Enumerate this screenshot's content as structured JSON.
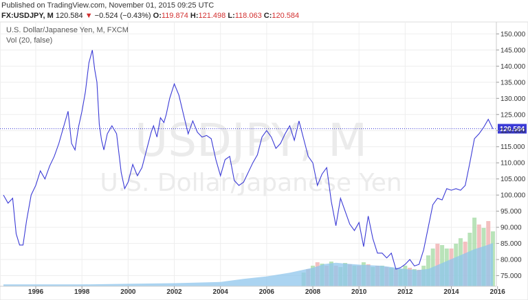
{
  "header": {
    "published": "Published on TradingView.com, November 01, 2015 09:25 UTC",
    "symbol": "FX:USDJPY, M",
    "last": "120.584",
    "change_arrow": "▼",
    "change": "−0.524 (−0.43%)",
    "o_label": "O:",
    "o_value": "119.874",
    "h_label": "H:",
    "h_value": "121.498",
    "l_label": "L:",
    "l_value": "118.063",
    "c_label": "C:",
    "c_value": "120.584"
  },
  "legend": {
    "title": "U.S. Dollar/Japanese Yen, M, FXCM",
    "indicator": "Vol (20, false)"
  },
  "watermark": {
    "line1": "USDJPY, M",
    "line2": "U.S. Dollar/Japanese Yen"
  },
  "colors": {
    "line": "#3a3ad6",
    "price_line": "#3a3ad6",
    "price_label_bg": "#3a3ad6",
    "grid": "#eeeeee",
    "vol_up": "#a8dca8",
    "vol_down": "#f0b0b0",
    "vol_ma": "#8fc5ec"
  },
  "chart_data": {
    "type": "line",
    "title": "U.S. Dollar/Japanese Yen, M, FXCM",
    "current_price": 120.584,
    "current_price_label": "120.584",
    "ylim": [
      70,
      152
    ],
    "yticks": [
      75,
      80,
      85,
      90,
      95,
      100,
      105,
      110,
      115,
      120,
      125,
      130,
      135,
      140,
      145,
      150
    ],
    "ytick_labels": [
      "75.000",
      "80.000",
      "85.000",
      "90.000",
      "95.000",
      "100.000",
      "105.000",
      "110.000",
      "115.000",
      "120.000",
      "125.000",
      "130.000",
      "135.000",
      "140.000",
      "145.000",
      "150.000"
    ],
    "xlim": [
      1994.6,
      2015.95
    ],
    "xticks": [
      1996,
      1998,
      2000,
      2002,
      2004,
      2006,
      2008,
      2010,
      2012,
      2014,
      2016
    ],
    "xtick_labels": [
      "1996",
      "1998",
      "2000",
      "2002",
      "2004",
      "2006",
      "2008",
      "2010",
      "2012",
      "2014",
      "2016"
    ],
    "grid": true,
    "series": [
      {
        "x": [
          1994.6,
          1994.8,
          1995.0,
          1995.15,
          1995.3,
          1995.45,
          1995.6,
          1995.8,
          1996.0,
          1996.2,
          1996.4,
          1996.6,
          1996.8,
          1997.0,
          1997.2,
          1997.4,
          1997.55,
          1997.7,
          1997.85,
          1998.0,
          1998.15,
          1998.3,
          1998.45,
          1998.55,
          1998.65,
          1998.75,
          1998.85,
          1998.95,
          1999.1,
          1999.3,
          1999.5,
          1999.7,
          1999.85,
          2000.0,
          2000.2,
          2000.4,
          2000.6,
          2000.8,
          2001.0,
          2001.1,
          2001.25,
          2001.4,
          2001.55,
          2001.65,
          2001.8,
          2002.0,
          2002.2,
          2002.4,
          2002.6,
          2002.8,
          2003.0,
          2003.2,
          2003.4,
          2003.6,
          2003.8,
          2004.0,
          2004.2,
          2004.4,
          2004.6,
          2004.8,
          2005.0,
          2005.2,
          2005.4,
          2005.6,
          2005.8,
          2006.0,
          2006.2,
          2006.4,
          2006.6,
          2006.8,
          2007.0,
          2007.2,
          2007.4,
          2007.6,
          2007.8,
          2008.0,
          2008.2,
          2008.4,
          2008.6,
          2008.8,
          2009.0,
          2009.2,
          2009.4,
          2009.6,
          2009.8,
          2010.0,
          2010.2,
          2010.4,
          2010.6,
          2010.8,
          2011.0,
          2011.2,
          2011.4,
          2011.6,
          2011.8,
          2012.0,
          2012.2,
          2012.4,
          2012.6,
          2012.8,
          2013.0,
          2013.2,
          2013.4,
          2013.6,
          2013.8,
          2014.0,
          2014.2,
          2014.4,
          2014.6,
          2014.8,
          2015.0,
          2015.2,
          2015.4,
          2015.6,
          2015.8
        ],
        "y": [
          100.0,
          97.5,
          99.0,
          88.0,
          84.5,
          84.5,
          92.0,
          100.0,
          103.0,
          107.5,
          105.0,
          109.0,
          112.0,
          116.0,
          121.0,
          126.0,
          116.0,
          114.0,
          121.0,
          126.0,
          132.0,
          141.0,
          145.0,
          139.0,
          135.0,
          122.0,
          117.0,
          114.0,
          119.0,
          121.5,
          119.0,
          107.0,
          102.0,
          104.0,
          109.5,
          106.0,
          108.5,
          114.0,
          119.5,
          121.5,
          118.0,
          124.0,
          122.5,
          125.0,
          130.0,
          134.5,
          131.0,
          125.0,
          119.0,
          123.0,
          119.5,
          118.0,
          118.5,
          117.5,
          111.0,
          106.0,
          111.0,
          112.0,
          104.5,
          103.0,
          104.0,
          107.0,
          110.0,
          112.5,
          118.0,
          120.0,
          118.0,
          114.5,
          116.0,
          119.0,
          121.5,
          117.0,
          123.0,
          117.5,
          112.0,
          110.0,
          103.0,
          106.5,
          108.5,
          98.0,
          90.5,
          99.0,
          95.0,
          91.0,
          89.0,
          91.5,
          84.0,
          93.5,
          86.5,
          82.0,
          82.0,
          80.5,
          82.0,
          77.0,
          77.5,
          78.5,
          80.0,
          78.0,
          78.5,
          83.0,
          90.0,
          97.0,
          99.0,
          98.5,
          102.0,
          101.5,
          102.0,
          101.5,
          103.0,
          110.0,
          117.5,
          119.0,
          121.0,
          123.5,
          120.5
        ]
      }
    ]
  },
  "volume_data": {
    "ma_x": [
      1994.6,
      1996.0,
      1998.0,
      2000.0,
      2002.0,
      2004.0,
      2005.0,
      2006.0,
      2007.0,
      2008.0,
      2008.5,
      2009.0,
      2010.0,
      2011.0,
      2012.0,
      2012.5,
      2013.0,
      2013.5,
      2014.0,
      2014.5,
      2015.0,
      2015.5,
      2015.8
    ],
    "ma_y": [
      0.03,
      0.03,
      0.03,
      0.04,
      0.05,
      0.07,
      0.12,
      0.16,
      0.22,
      0.3,
      0.36,
      0.38,
      0.35,
      0.33,
      0.28,
      0.26,
      0.28,
      0.36,
      0.44,
      0.52,
      0.6,
      0.66,
      0.7
    ],
    "bars_x": [
      2007.6,
      2007.8,
      2008.0,
      2008.2,
      2008.4,
      2008.6,
      2008.8,
      2009.0,
      2009.2,
      2009.4,
      2009.6,
      2009.8,
      2010.0,
      2010.2,
      2010.4,
      2010.6,
      2010.8,
      2011.0,
      2011.2,
      2011.4,
      2011.6,
      2011.8,
      2012.0,
      2012.2,
      2012.4,
      2012.6,
      2012.8,
      2013.0,
      2013.2,
      2013.4,
      2013.6,
      2013.8,
      2014.0,
      2014.2,
      2014.4,
      2014.6,
      2014.8,
      2015.0,
      2015.2,
      2015.4,
      2015.6,
      2015.8
    ],
    "bars_h": [
      0.2,
      0.25,
      0.3,
      0.35,
      0.33,
      0.3,
      0.36,
      0.3,
      0.28,
      0.34,
      0.32,
      0.3,
      0.3,
      0.35,
      0.32,
      0.28,
      0.3,
      0.3,
      0.28,
      0.27,
      0.26,
      0.25,
      0.3,
      0.27,
      0.25,
      0.24,
      0.3,
      0.45,
      0.55,
      0.62,
      0.6,
      0.55,
      0.55,
      0.62,
      0.7,
      0.65,
      0.78,
      1.0,
      0.9,
      0.85,
      0.95,
      0.8
    ],
    "bars_up": [
      true,
      false,
      true,
      false,
      true,
      false,
      true,
      false,
      true,
      true,
      false,
      true,
      false,
      true,
      false,
      true,
      false,
      true,
      false,
      true,
      false,
      true,
      true,
      false,
      true,
      false,
      true,
      true,
      true,
      false,
      true,
      true,
      false,
      true,
      true,
      false,
      true,
      true,
      false,
      true,
      false,
      true
    ]
  }
}
